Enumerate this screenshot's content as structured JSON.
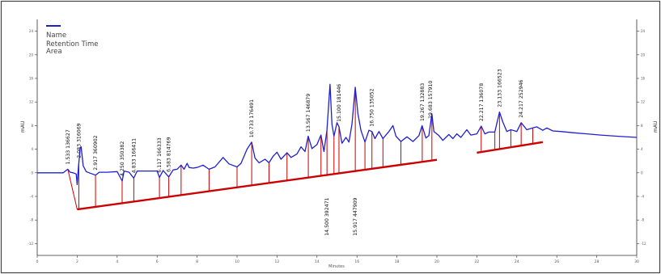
{
  "chart_data": {
    "type": "line",
    "legend_label": "",
    "info_lines": [
      "Name",
      "Retention Time",
      "Area"
    ],
    "ylabel_left": "mAU",
    "ylabel_right": "mAU",
    "xlabel": "Minutes",
    "xlim": [
      0,
      30
    ],
    "ylim": [
      -14,
      26
    ],
    "x_ticks": [
      0,
      2,
      4,
      6,
      8,
      10,
      12,
      14,
      16,
      18,
      20,
      22,
      24,
      26,
      28,
      30
    ],
    "y_ticks": [
      -12,
      -8,
      -4,
      0,
      4,
      8,
      12,
      16,
      20,
      24
    ],
    "series": [
      {
        "color": "#1f1fd0",
        "points": [
          [
            0,
            0
          ],
          [
            1.3,
            0
          ],
          [
            1.45,
            0.4
          ],
          [
            1.53,
            0.6
          ],
          [
            1.65,
            0.1
          ],
          [
            1.8,
            0
          ],
          [
            1.95,
            -0.2
          ],
          [
            2.0,
            -2.0
          ],
          [
            2.05,
            0.4
          ],
          [
            2.15,
            4.2
          ],
          [
            2.2,
            4.4
          ],
          [
            2.3,
            1.2
          ],
          [
            2.45,
            0.2
          ],
          [
            2.6,
            0
          ],
          [
            2.92,
            -0.4
          ],
          [
            3.1,
            0.1
          ],
          [
            3.5,
            0.1
          ],
          [
            4.0,
            0.2
          ],
          [
            4.25,
            -1.4
          ],
          [
            4.35,
            0.3
          ],
          [
            4.6,
            0.1
          ],
          [
            4.83,
            -0.9
          ],
          [
            5.0,
            0.3
          ],
          [
            5.5,
            0.3
          ],
          [
            6.0,
            0.3
          ],
          [
            6.117,
            -0.8
          ],
          [
            6.3,
            0.4
          ],
          [
            6.583,
            -0.7
          ],
          [
            6.8,
            0.5
          ],
          [
            7.0,
            0.6
          ],
          [
            7.2,
            1.3
          ],
          [
            7.35,
            0.6
          ],
          [
            7.5,
            1.6
          ],
          [
            7.6,
            0.9
          ],
          [
            7.8,
            0.8
          ],
          [
            8.0,
            0.9
          ],
          [
            8.3,
            1.3
          ],
          [
            8.6,
            0.6
          ],
          [
            8.9,
            1.0
          ],
          [
            9.3,
            2.6
          ],
          [
            9.6,
            1.5
          ],
          [
            10.0,
            1.0
          ],
          [
            10.2,
            1.6
          ],
          [
            10.5,
            4.0
          ],
          [
            10.73,
            5.2
          ],
          [
            10.9,
            2.5
          ],
          [
            11.1,
            1.7
          ],
          [
            11.4,
            2.3
          ],
          [
            11.6,
            1.7
          ],
          [
            11.8,
            2.8
          ],
          [
            12.0,
            3.5
          ],
          [
            12.2,
            2.3
          ],
          [
            12.5,
            3.4
          ],
          [
            12.7,
            2.6
          ],
          [
            13.0,
            3.2
          ],
          [
            13.2,
            4.4
          ],
          [
            13.4,
            3.6
          ],
          [
            13.56,
            6.2
          ],
          [
            13.75,
            4.1
          ],
          [
            14.0,
            4.8
          ],
          [
            14.2,
            6.4
          ],
          [
            14.35,
            3.6
          ],
          [
            14.5,
            7.2
          ],
          [
            14.65,
            15.0
          ],
          [
            14.75,
            8.2
          ],
          [
            14.85,
            6.2
          ],
          [
            15.0,
            8.5
          ],
          [
            15.1,
            7.8
          ],
          [
            15.25,
            5.0
          ],
          [
            15.45,
            6.0
          ],
          [
            15.6,
            5.2
          ],
          [
            15.75,
            8.2
          ],
          [
            15.917,
            14.5
          ],
          [
            16.05,
            10.0
          ],
          [
            16.2,
            7.2
          ],
          [
            16.4,
            5.2
          ],
          [
            16.6,
            7.2
          ],
          [
            16.75,
            7.0
          ],
          [
            16.9,
            5.8
          ],
          [
            17.1,
            7.0
          ],
          [
            17.3,
            5.8
          ],
          [
            17.6,
            7.0
          ],
          [
            17.8,
            8.0
          ],
          [
            17.95,
            6.2
          ],
          [
            18.2,
            5.3
          ],
          [
            18.5,
            6.1
          ],
          [
            18.8,
            5.3
          ],
          [
            19.1,
            6.3
          ],
          [
            19.26,
            8.0
          ],
          [
            19.45,
            5.9
          ],
          [
            19.6,
            6.3
          ],
          [
            19.75,
            10.0
          ],
          [
            19.85,
            7.0
          ],
          [
            20.1,
            6.3
          ],
          [
            20.3,
            5.5
          ],
          [
            20.6,
            6.5
          ],
          [
            20.8,
            5.8
          ],
          [
            21.0,
            6.6
          ],
          [
            21.2,
            6.0
          ],
          [
            21.5,
            7.3
          ],
          [
            21.7,
            6.4
          ],
          [
            22.0,
            6.6
          ],
          [
            22.217,
            7.9
          ],
          [
            22.4,
            6.6
          ],
          [
            22.6,
            6.9
          ],
          [
            22.9,
            6.9
          ],
          [
            23.133,
            10.3
          ],
          [
            23.3,
            8.6
          ],
          [
            23.5,
            7.0
          ],
          [
            23.7,
            7.3
          ],
          [
            24.0,
            7.0
          ],
          [
            24.217,
            8.5
          ],
          [
            24.5,
            7.3
          ],
          [
            24.8,
            7.6
          ],
          [
            25.0,
            7.8
          ],
          [
            25.3,
            7.2
          ],
          [
            25.5,
            7.6
          ],
          [
            25.8,
            7.1
          ],
          [
            26.2,
            7.0
          ],
          [
            26.8,
            6.8
          ],
          [
            27.5,
            6.6
          ],
          [
            28.2,
            6.4
          ],
          [
            29.0,
            6.2
          ],
          [
            30.0,
            6.0
          ]
        ]
      }
    ],
    "baseline_color": "#cc0000",
    "baselines": [
      {
        "points": [
          [
            2.0,
            -6.2
          ],
          [
            20.0,
            2.2
          ]
        ]
      },
      {
        "points": [
          [
            22.0,
            3.4
          ],
          [
            25.3,
            5.2
          ]
        ]
      }
    ],
    "drop_lines_x": [
      1.533,
      2.083,
      2.917,
      4.25,
      4.833,
      6.117,
      6.583,
      7.2,
      8.6,
      10.0,
      10.733,
      11.6,
      12.5,
      13.567,
      14.2,
      14.5,
      14.85,
      15.1,
      15.917,
      16.4,
      16.75,
      17.3,
      18.2,
      19.267,
      19.75,
      22.217,
      22.9,
      23.133,
      23.7,
      24.217,
      24.8
    ],
    "peak_labels": [
      {
        "x": 1.533,
        "text": "1.533 136627",
        "side": "above"
      },
      {
        "x": 2.083,
        "text": "2.083 316069",
        "side": "above"
      },
      {
        "x": 2.917,
        "text": "2.917 360902",
        "side": "above"
      },
      {
        "x": 4.25,
        "text": "4.250 350382",
        "side": "above"
      },
      {
        "x": 4.833,
        "text": "4.833 166411",
        "side": "above"
      },
      {
        "x": 6.117,
        "text": "6.117 166333",
        "side": "above"
      },
      {
        "x": 6.583,
        "text": "6.583 814769",
        "side": "above"
      },
      {
        "x": 10.733,
        "text": "10.733 176491",
        "side": "above"
      },
      {
        "x": 13.567,
        "text": "13.567 146879",
        "side": "above"
      },
      {
        "x": 15.1,
        "text": "15.100 181446",
        "side": "above"
      },
      {
        "x": 16.75,
        "text": "16.750 135052",
        "side": "above"
      },
      {
        "x": 19.267,
        "text": "19.267 132883",
        "side": "above"
      },
      {
        "x": 19.683,
        "text": "19.683 157910",
        "side": "above"
      },
      {
        "x": 22.217,
        "text": "22.217 136078",
        "side": "above"
      },
      {
        "x": 23.133,
        "text": "23.133 166523",
        "side": "above"
      },
      {
        "x": 24.217,
        "text": "24.217 252946",
        "side": "above"
      },
      {
        "x": 14.5,
        "text": "14.500 392471",
        "side": "below"
      },
      {
        "x": 15.917,
        "text": "15.917 447909",
        "side": "below"
      }
    ],
    "grid": false
  }
}
